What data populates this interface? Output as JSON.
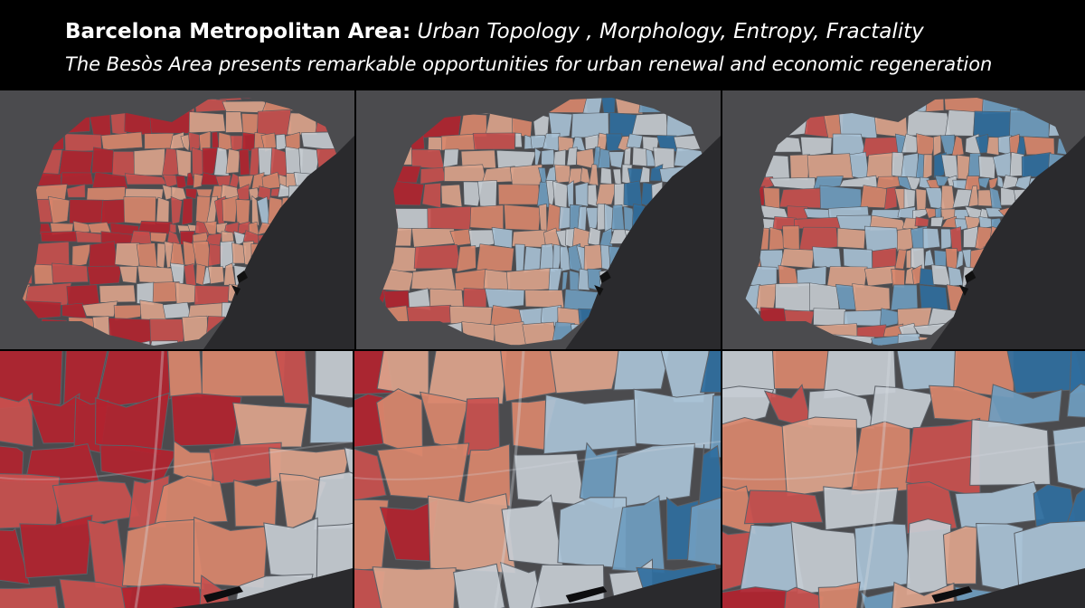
{
  "header": {
    "title_bold": "Barcelona Metropolitan Area:",
    "title_italic": "Urban Topology , Morphology, Entropy, Fractality",
    "subtitle": "The Besòs Area presents remarkable opportunities for urban renewal and economic regeneration"
  },
  "colors": {
    "land": "#4b4b4e",
    "sea": "#2a2a2d",
    "red_strong": "#b2232f",
    "red": "#c9504e",
    "salmon": "#d9876d",
    "peach": "#dda48c",
    "light": "#c6ccd2",
    "pale_blue": "#a9c2d6",
    "blue": "#6f9dc0",
    "blue_strong": "#2f6e9e"
  },
  "panels": {
    "overview_1": {
      "icon": "map-overview-topology"
    },
    "overview_2": {
      "icon": "map-overview-morphology"
    },
    "overview_3": {
      "icon": "map-overview-entropy"
    },
    "detail_1": {
      "icon": "map-besos-detail-topology"
    },
    "detail_2": {
      "icon": "map-besos-detail-morphology"
    },
    "detail_3": {
      "icon": "map-besos-detail-entropy"
    }
  }
}
